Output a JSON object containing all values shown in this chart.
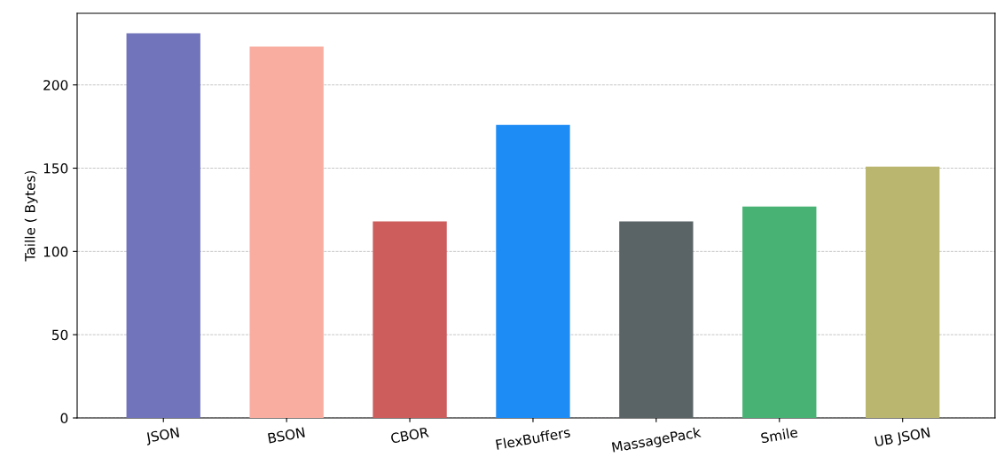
{
  "chart_data": {
    "type": "bar",
    "ylabel": "Taille ( Bytes)",
    "categories": [
      "JSON",
      "BSON",
      "CBOR",
      "FlexBuffers",
      "MassagePack",
      "Smile",
      "UB JSON"
    ],
    "values": [
      231,
      223,
      118,
      176,
      118,
      127,
      151
    ],
    "colors": [
      "#7274bb",
      "#f9ada0",
      "#cd5c5c",
      "#1e8cf5",
      "#5a6466",
      "#47b274",
      "#bbb66f"
    ],
    "ylim": [
      0,
      243
    ],
    "yticks": [
      0,
      50,
      100,
      150,
      200
    ],
    "grid": "y"
  }
}
